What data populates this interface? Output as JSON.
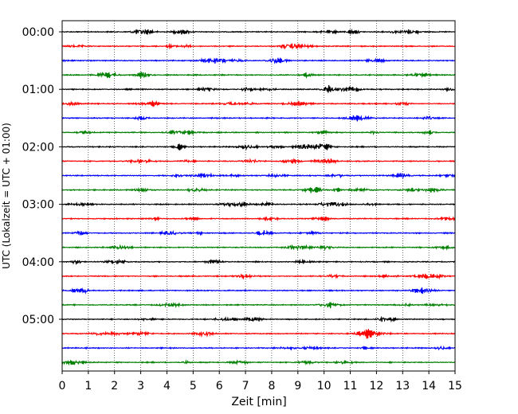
{
  "chart_data": {
    "type": "line",
    "title": "",
    "xlabel": "Zeit  [min]",
    "ylabel": "UTC (Lokalzeit = UTC + 01:00)",
    "xlim": [
      0,
      15
    ],
    "x_ticks": [
      0,
      1,
      2,
      3,
      4,
      5,
      6,
      7,
      8,
      9,
      10,
      11,
      12,
      13,
      14,
      15
    ],
    "y_tick_labels": [
      "00:00",
      "01:00",
      "02:00",
      "03:00",
      "04:00",
      "05:00"
    ],
    "grid": "vertical dotted lines at each minute",
    "trace_interval_min": 15,
    "trace_starts": [
      "00:00",
      "00:15",
      "00:30",
      "00:45",
      "01:00",
      "01:15",
      "01:30",
      "01:45",
      "02:00",
      "02:15",
      "02:30",
      "02:45",
      "03:00",
      "03:15",
      "03:30",
      "03:45",
      "04:00",
      "04:15",
      "04:30",
      "04:45",
      "05:00",
      "05:15",
      "05:30",
      "05:45"
    ],
    "trace_colors": [
      "#000000",
      "#ff0000",
      "#0000ff",
      "#008000"
    ]
  }
}
